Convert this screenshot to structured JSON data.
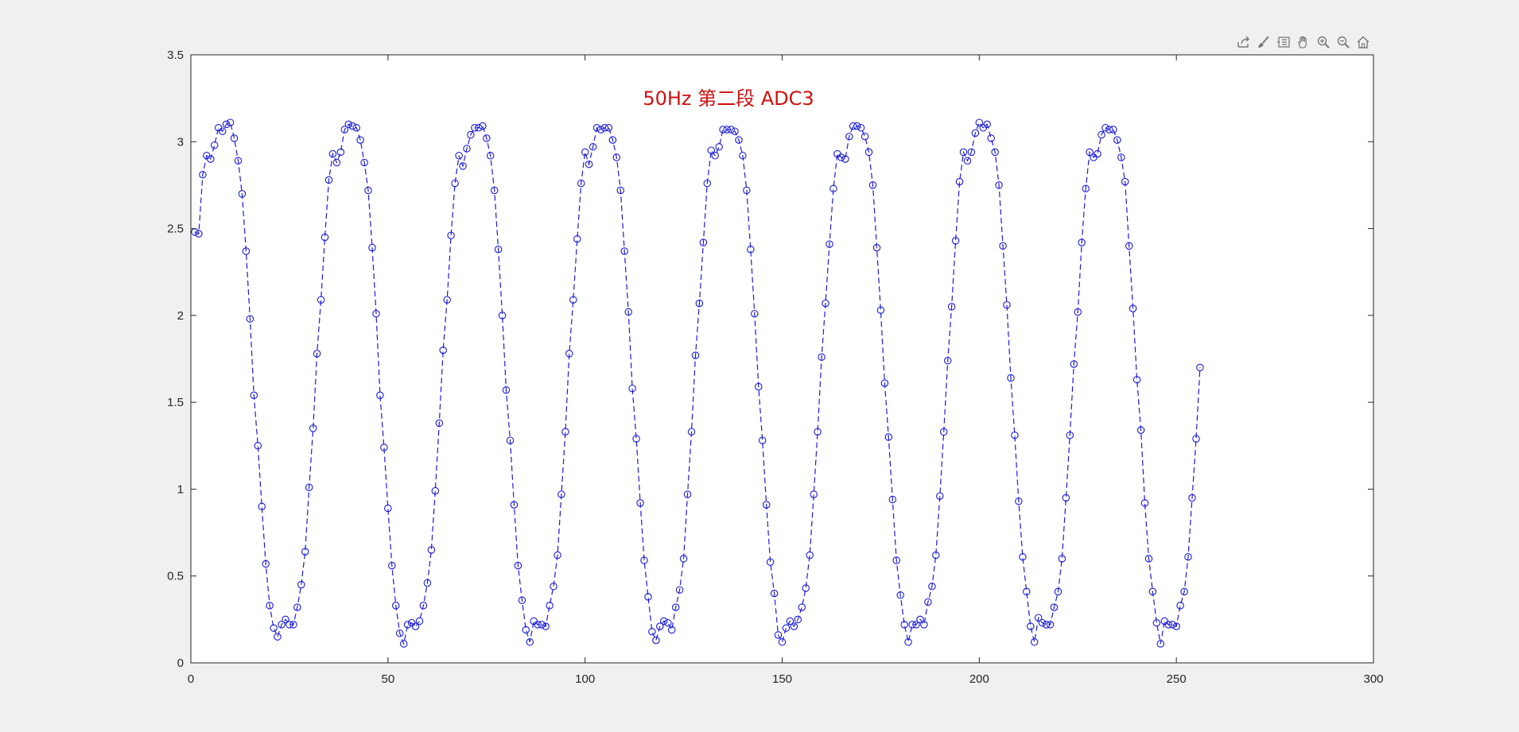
{
  "toolbar": {
    "icons": [
      "export-icon",
      "brush-icon",
      "legend-icon",
      "pan-hand-icon",
      "zoom-in-icon",
      "zoom-out-icon",
      "home-icon"
    ]
  },
  "colors": {
    "series": "#1c1cd8",
    "title": "#d01010",
    "axis": "#262626",
    "background": "#f0f0f0",
    "plot_area": "#ffffff"
  },
  "chart_data": {
    "type": "line",
    "title": "50Hz 第二段 ADC3",
    "xlabel": "",
    "ylabel": "",
    "xlim": [
      0,
      300
    ],
    "ylim": [
      0,
      3.5
    ],
    "xticks": [
      0,
      50,
      100,
      150,
      200,
      250,
      300
    ],
    "yticks": [
      0,
      0.5,
      1,
      1.5,
      2,
      2.5,
      3,
      3.5
    ],
    "xtick_labels": [
      "0",
      "50",
      "100",
      "150",
      "200",
      "250",
      "300"
    ],
    "ytick_labels": [
      "0",
      "0.5",
      "1",
      "1.5",
      "2",
      "2.5",
      "3",
      "3.5"
    ],
    "grid": false,
    "line_style": "dashed",
    "marker": "circle",
    "series": [
      {
        "y": [
          2.48,
          2.47,
          2.81,
          2.92,
          2.9,
          2.98,
          3.08,
          3.06,
          3.1,
          3.11,
          3.02,
          2.89,
          2.7,
          2.37,
          1.98,
          1.54,
          1.25,
          0.9,
          0.57,
          0.33,
          0.2,
          0.15,
          0.22,
          0.25,
          0.22,
          0.22,
          0.32,
          0.45,
          0.64,
          1.01,
          1.35,
          1.78,
          2.09,
          2.45,
          2.78,
          2.93,
          2.88,
          2.94,
          3.07,
          3.1,
          3.09,
          3.08,
          3.01,
          2.88,
          2.72,
          2.39,
          2.01,
          1.54,
          1.24,
          0.89,
          0.56,
          0.33,
          0.17,
          0.11,
          0.22,
          0.23,
          0.21,
          0.24,
          0.33,
          0.46,
          0.65,
          0.99,
          1.38,
          1.8,
          2.09,
          2.46,
          2.76,
          2.92,
          2.86,
          2.96,
          3.04,
          3.08,
          3.08,
          3.09,
          3.02,
          2.92,
          2.72,
          2.38,
          2.0,
          1.57,
          1.28,
          0.91,
          0.56,
          0.36,
          0.19,
          0.12,
          0.24,
          0.22,
          0.22,
          0.21,
          0.33,
          0.44,
          0.62,
          0.97,
          1.33,
          1.78,
          2.09,
          2.44,
          2.76,
          2.94,
          2.87,
          2.97,
          3.08,
          3.07,
          3.08,
          3.08,
          3.01,
          2.91,
          2.72,
          2.37,
          2.02,
          1.58,
          1.29,
          0.92,
          0.59,
          0.38,
          0.18,
          0.13,
          0.21,
          0.24,
          0.23,
          0.19,
          0.32,
          0.42,
          0.6,
          0.97,
          1.33,
          1.77,
          2.07,
          2.42,
          2.76,
          2.95,
          2.92,
          2.97,
          3.07,
          3.07,
          3.07,
          3.06,
          3.01,
          2.92,
          2.72,
          2.38,
          2.01,
          1.59,
          1.28,
          0.91,
          0.58,
          0.4,
          0.16,
          0.12,
          0.2,
          0.24,
          0.21,
          0.25,
          0.32,
          0.43,
          0.62,
          0.97,
          1.33,
          1.76,
          2.07,
          2.41,
          2.73,
          2.93,
          2.91,
          2.9,
          3.03,
          3.09,
          3.09,
          3.08,
          3.03,
          2.94,
          2.75,
          2.39,
          2.03,
          1.61,
          1.3,
          0.94,
          0.59,
          0.39,
          0.22,
          0.12,
          0.22,
          0.22,
          0.25,
          0.22,
          0.35,
          0.44,
          0.62,
          0.96,
          1.33,
          1.74,
          2.05,
          2.43,
          2.77,
          2.94,
          2.89,
          2.94,
          3.05,
          3.11,
          3.08,
          3.1,
          3.02,
          2.94,
          2.75,
          2.4,
          2.06,
          1.64,
          1.31,
          0.93,
          0.61,
          0.41,
          0.21,
          0.12,
          0.26,
          0.23,
          0.22,
          0.22,
          0.32,
          0.41,
          0.6,
          0.95,
          1.31,
          1.72,
          2.02,
          2.42,
          2.73,
          2.94,
          2.91,
          2.93,
          3.04,
          3.08,
          3.07,
          3.07,
          3.01,
          2.91,
          2.77,
          2.4,
          2.04,
          1.63,
          1.34,
          0.92,
          0.6,
          0.41,
          0.23,
          0.11,
          0.24,
          0.22,
          0.22,
          0.21,
          0.33,
          0.41,
          0.61,
          0.95,
          1.29,
          1.7
        ]
      }
    ]
  }
}
